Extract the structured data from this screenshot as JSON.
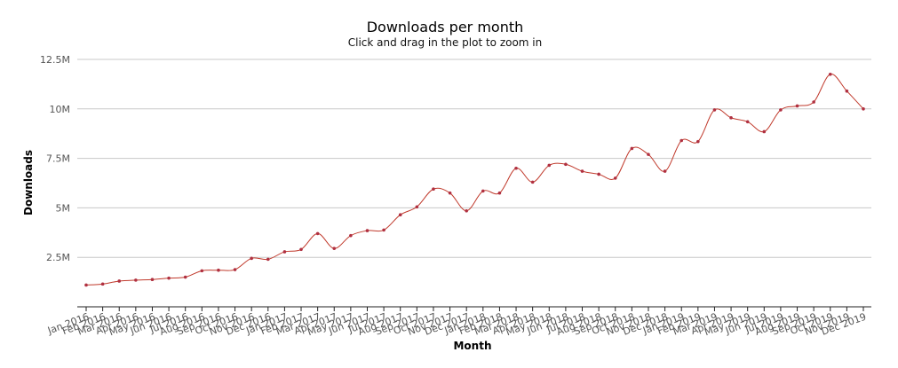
{
  "chart_data": {
    "type": "line",
    "title": "Downloads per month",
    "subtitle": "Click and drag in the plot to zoom in",
    "xlabel": "Month",
    "ylabel": "Downloads",
    "ylim": [
      0,
      12500000
    ],
    "yticks": [
      2500000,
      5000000,
      7500000,
      10000000,
      12500000
    ],
    "ytick_labels": [
      "2.5M",
      "5M",
      "7.5M",
      "10M",
      "12.5M"
    ],
    "grid": true,
    "colors": {
      "line": "#c0392b",
      "marker": "#b03040"
    },
    "categories": [
      "Jan 2016",
      "Feb 2016",
      "Mar 2016",
      "Apr 2016",
      "May 2016",
      "Jun 2016",
      "Jul 2016",
      "Aug 2016",
      "Sep 2016",
      "Oct 2016",
      "Nov 2016",
      "Dec 2016",
      "Jan 2017",
      "Feb 2017",
      "Mar 2017",
      "Apr 2017",
      "May 2017",
      "Jun 2017",
      "Jul 2017",
      "Aug 2017",
      "Sep 2017",
      "Oct 2017",
      "Nov 2017",
      "Dec 2017",
      "Jan 2018",
      "Feb 2018",
      "Mar 2018",
      "Apr 2018",
      "May 2018",
      "Jun 2018",
      "Jul 2018",
      "Aug 2018",
      "Sep 2018",
      "Oct 2018",
      "Nov 2018",
      "Dec 2018",
      "Jan 2019",
      "Feb 2019",
      "Mar 2019",
      "Apr 2019",
      "May 2019",
      "Jun 2019",
      "Jul 2019",
      "Aug 2019",
      "Sep 2019",
      "Oct 2019",
      "Nov 2019",
      "Dec 2019"
    ],
    "values": [
      1100000,
      1150000,
      1300000,
      1350000,
      1380000,
      1450000,
      1500000,
      1820000,
      1850000,
      1880000,
      2450000,
      2400000,
      2780000,
      2900000,
      3700000,
      2950000,
      3600000,
      3850000,
      3880000,
      4650000,
      5050000,
      5950000,
      5750000,
      4850000,
      5850000,
      5750000,
      7000000,
      6300000,
      7150000,
      7200000,
      6850000,
      6700000,
      6500000,
      8000000,
      7700000,
      6850000,
      8400000,
      8350000,
      9950000,
      9550000,
      9350000,
      8850000,
      9950000,
      10150000,
      10350000,
      11750000,
      10900000,
      10000000
    ]
  }
}
